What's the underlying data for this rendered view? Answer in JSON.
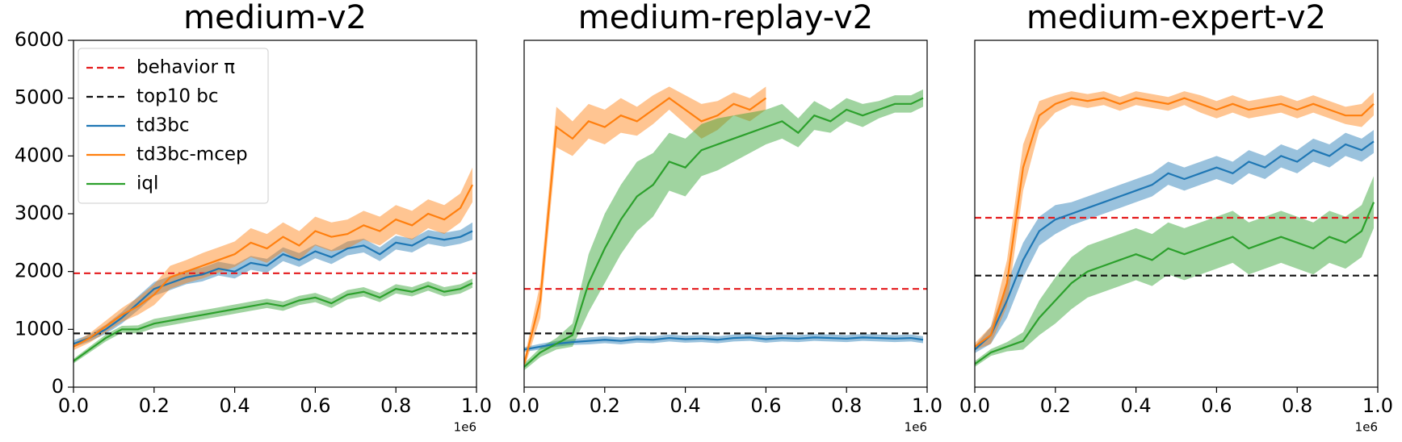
{
  "chart_data": [
    {
      "type": "line",
      "title": "medium-v2",
      "legend": "upper left",
      "x_offset_label": "1e6",
      "xlim": [
        0,
        1
      ],
      "ylim": [
        0,
        6000
      ],
      "xticks": [
        {
          "value": 0,
          "label": "0.0"
        },
        0.2,
        0.4,
        0.6,
        0.8,
        {
          "value": 1,
          "label": "1.0"
        }
      ],
      "yticks": [
        0,
        1000,
        2000,
        3000,
        4000,
        5000,
        6000
      ],
      "x": [
        0,
        0.04,
        0.08,
        0.12,
        0.16,
        0.2,
        0.24,
        0.28,
        0.32,
        0.36,
        0.4,
        0.44,
        0.48,
        0.52,
        0.56,
        0.6,
        0.64,
        0.68,
        0.72,
        0.76,
        0.8,
        0.84,
        0.88,
        0.92,
        0.96,
        0.99
      ],
      "hlines": [
        {
          "name": "behavior π",
          "color": "#e41a1c",
          "value": 1970
        },
        {
          "name": "top10 bc",
          "color": "#111111",
          "value": 930
        }
      ],
      "series": [
        {
          "name": "td3bc",
          "color": "#1f77b4",
          "values": [
            750,
            850,
            1000,
            1200,
            1450,
            1700,
            1800,
            1900,
            1950,
            2050,
            2000,
            2150,
            2100,
            2300,
            2200,
            2350,
            2250,
            2400,
            2450,
            2300,
            2500,
            2450,
            2600,
            2550,
            2600,
            2700
          ],
          "err": [
            60,
            60,
            80,
            100,
            120,
            120,
            120,
            120,
            120,
            120,
            120,
            120,
            120,
            120,
            120,
            120,
            120,
            120,
            120,
            120,
            120,
            120,
            120,
            120,
            120,
            150
          ]
        },
        {
          "name": "td3bc-mcep",
          "color": "#ff7f0e",
          "values": [
            700,
            850,
            1050,
            1250,
            1400,
            1600,
            1900,
            2000,
            2100,
            2200,
            2300,
            2500,
            2400,
            2600,
            2450,
            2700,
            2600,
            2650,
            2800,
            2700,
            2900,
            2800,
            3000,
            2900,
            3100,
            3500
          ],
          "err": [
            60,
            80,
            100,
            120,
            150,
            180,
            200,
            200,
            220,
            220,
            220,
            250,
            250,
            250,
            250,
            250,
            250,
            250,
            250,
            250,
            250,
            250,
            250,
            250,
            250,
            300
          ]
        },
        {
          "name": "iql",
          "color": "#2ca02c",
          "values": [
            450,
            650,
            850,
            1000,
            1000,
            1100,
            1150,
            1200,
            1250,
            1300,
            1350,
            1400,
            1450,
            1400,
            1500,
            1550,
            1450,
            1600,
            1650,
            1550,
            1700,
            1650,
            1750,
            1650,
            1700,
            1800
          ],
          "err": [
            40,
            50,
            60,
            60,
            70,
            80,
            80,
            80,
            80,
            80,
            80,
            80,
            80,
            80,
            80,
            80,
            80,
            80,
            80,
            80,
            80,
            80,
            80,
            80,
            80,
            80
          ]
        }
      ]
    },
    {
      "type": "line",
      "title": "medium-replay-v2",
      "x_offset_label": "1e6",
      "xlim": [
        0,
        1
      ],
      "ylim": [
        0,
        6000
      ],
      "xticks": [
        {
          "value": 0,
          "label": "0.0"
        },
        0.2,
        0.4,
        0.6,
        0.8,
        {
          "value": 1,
          "label": "1.0"
        }
      ],
      "x": [
        0,
        0.04,
        0.08,
        0.12,
        0.16,
        0.2,
        0.24,
        0.28,
        0.32,
        0.36,
        0.4,
        0.44,
        0.48,
        0.52,
        0.56,
        0.6,
        0.64,
        0.68,
        0.72,
        0.76,
        0.8,
        0.84,
        0.88,
        0.92,
        0.96,
        0.99
      ],
      "hlines": [
        {
          "color": "#e41a1c",
          "value": 1700
        },
        {
          "color": "#111111",
          "value": 930
        }
      ],
      "series": [
        {
          "color": "#1f77b4",
          "values": [
            650,
            700,
            750,
            780,
            800,
            820,
            800,
            830,
            820,
            850,
            830,
            840,
            820,
            850,
            860,
            830,
            850,
            840,
            860,
            850,
            840,
            860,
            850,
            840,
            850,
            820
          ],
          "err": [
            40,
            50,
            50,
            50,
            60,
            60,
            60,
            60,
            60,
            60,
            60,
            60,
            60,
            60,
            60,
            60,
            60,
            60,
            60,
            60,
            60,
            60,
            60,
            60,
            60,
            60
          ]
        },
        {
          "color": "#ff7f0e",
          "values": [
            400,
            1500,
            4500,
            4300,
            4600,
            4500,
            4700,
            4600,
            4800,
            5000,
            4800,
            4600,
            4700,
            4900,
            4800,
            5000,
            null,
            null,
            null,
            null,
            null,
            null,
            null,
            null,
            null,
            null
          ],
          "err": [
            80,
            300,
            350,
            300,
            300,
            300,
            300,
            250,
            250,
            200,
            250,
            300,
            250,
            200,
            200,
            200,
            null,
            null,
            null,
            null,
            null,
            null,
            null,
            null,
            null,
            null
          ]
        },
        {
          "color": "#2ca02c",
          "values": [
            350,
            600,
            750,
            900,
            1800,
            2400,
            2900,
            3300,
            3500,
            3900,
            3800,
            4100,
            4200,
            4300,
            4400,
            4500,
            4600,
            4400,
            4700,
            4600,
            4800,
            4700,
            4800,
            4900,
            4900,
            5000
          ],
          "err": [
            60,
            80,
            100,
            200,
            500,
            600,
            600,
            600,
            550,
            500,
            500,
            450,
            450,
            400,
            350,
            300,
            300,
            250,
            250,
            200,
            200,
            200,
            150,
            150,
            150,
            150
          ]
        }
      ]
    },
    {
      "type": "line",
      "title": "medium-expert-v2",
      "x_offset_label": "1e6",
      "xlim": [
        0,
        1
      ],
      "ylim": [
        0,
        6000
      ],
      "xticks": [
        {
          "value": 0,
          "label": "0.0"
        },
        0.2,
        0.4,
        0.6,
        0.8,
        {
          "value": 1,
          "label": "1.0"
        }
      ],
      "x": [
        0,
        0.04,
        0.08,
        0.12,
        0.16,
        0.2,
        0.24,
        0.28,
        0.32,
        0.36,
        0.4,
        0.44,
        0.48,
        0.52,
        0.56,
        0.6,
        0.64,
        0.68,
        0.72,
        0.76,
        0.8,
        0.84,
        0.88,
        0.92,
        0.96,
        0.99
      ],
      "hlines": [
        {
          "color": "#e41a1c",
          "value": 2930
        },
        {
          "color": "#111111",
          "value": 1930
        }
      ],
      "series": [
        {
          "color": "#1f77b4",
          "values": [
            650,
            900,
            1500,
            2200,
            2700,
            2900,
            3000,
            3100,
            3200,
            3300,
            3400,
            3500,
            3700,
            3600,
            3700,
            3800,
            3700,
            3900,
            3800,
            4000,
            3900,
            4100,
            4000,
            4200,
            4100,
            4250
          ],
          "err": [
            60,
            150,
            300,
            300,
            250,
            250,
            200,
            200,
            200,
            200,
            200,
            200,
            200,
            200,
            200,
            200,
            200,
            200,
            200,
            200,
            200,
            200,
            200,
            200,
            200,
            200
          ]
        },
        {
          "color": "#ff7f0e",
          "values": [
            700,
            900,
            1800,
            3800,
            4700,
            4900,
            5000,
            4950,
            5000,
            4900,
            5000,
            4950,
            4900,
            5000,
            4900,
            4800,
            4900,
            4800,
            4850,
            4900,
            4800,
            4900,
            4800,
            4700,
            4700,
            4900
          ],
          "err": [
            60,
            150,
            400,
            400,
            250,
            150,
            120,
            120,
            120,
            120,
            120,
            120,
            120,
            120,
            150,
            150,
            150,
            150,
            150,
            150,
            150,
            150,
            150,
            150,
            200,
            200
          ]
        },
        {
          "color": "#2ca02c",
          "values": [
            400,
            600,
            700,
            800,
            1200,
            1500,
            1800,
            2000,
            2100,
            2200,
            2300,
            2200,
            2400,
            2300,
            2400,
            2500,
            2600,
            2400,
            2500,
            2600,
            2500,
            2400,
            2600,
            2500,
            2700,
            3200
          ],
          "err": [
            50,
            60,
            80,
            150,
            300,
            400,
            450,
            450,
            450,
            450,
            450,
            450,
            450,
            450,
            450,
            450,
            450,
            450,
            450,
            450,
            450,
            450,
            450,
            450,
            450,
            450
          ]
        }
      ]
    }
  ]
}
